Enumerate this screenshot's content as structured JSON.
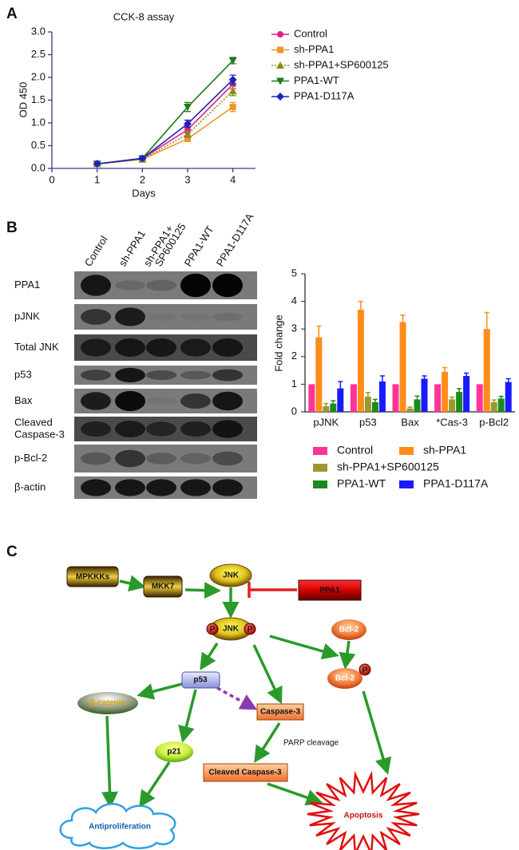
{
  "panels": {
    "a": "A",
    "b": "B",
    "c": "C"
  },
  "chart_data": [
    {
      "type": "line",
      "title": "CCK-8 assay",
      "x_label": "Days",
      "y_label": "OD 450",
      "x": [
        1,
        2,
        3,
        4
      ],
      "xlim": [
        0,
        4.5
      ],
      "xticks": [
        0,
        1,
        2,
        3,
        4
      ],
      "ylim": [
        0,
        3
      ],
      "yticks": [
        {
          "value": 0,
          "label": "0.0"
        },
        0.5,
        {
          "value": 1,
          "label": "1.0"
        },
        1.5,
        {
          "value": 2,
          "label": "2.0"
        },
        2.5,
        {
          "value": 3,
          "label": "3.0"
        }
      ],
      "series": [
        {
          "name": "Control",
          "color": "#e0218a",
          "values": [
            0.1,
            0.22,
            0.85,
            1.85
          ],
          "errors": [
            0.02,
            0.02,
            0.07,
            0.1
          ]
        },
        {
          "name": "sh-PPA1",
          "color": "#f0952a",
          "values": [
            0.1,
            0.2,
            0.65,
            1.35
          ],
          "errors": [
            0.02,
            0.02,
            0.06,
            0.1
          ]
        },
        {
          "name": "sh-PPA1+SP600125",
          "color": "#8b8b1a",
          "line_style": "dotted",
          "values": [
            0.1,
            0.2,
            0.75,
            1.7
          ],
          "errors": [
            0.02,
            0.02,
            0.07,
            0.1
          ]
        },
        {
          "name": "PPA1-WT",
          "color": "#1e7a1e",
          "values": [
            0.1,
            0.22,
            1.35,
            2.37
          ],
          "errors": [
            0.02,
            0.02,
            0.1,
            0.07
          ]
        },
        {
          "name": "PPA1-D117A",
          "color": "#2020c0",
          "values": [
            0.1,
            0.22,
            0.98,
            1.95
          ],
          "errors": [
            0.02,
            0.02,
            0.08,
            0.1
          ]
        }
      ]
    },
    {
      "type": "bar",
      "y_label": "Fold change",
      "categories": [
        "pJNK",
        "p53",
        "Bax",
        "*Cas-3",
        "p-Bcl2"
      ],
      "ylim": [
        0,
        5
      ],
      "yticks": [
        0,
        1,
        2,
        3,
        4,
        5
      ],
      "series": [
        {
          "name": "Control",
          "color": "#ff3399",
          "values": [
            1,
            1,
            1,
            1,
            1
          ]
        },
        {
          "name": "sh-PPA1",
          "color": "#ff8c1a",
          "values": [
            2.7,
            3.7,
            3.25,
            1.45,
            3.0
          ],
          "errors": [
            0.4,
            0.3,
            0.25,
            0.15,
            0.6
          ]
        },
        {
          "name": "sh-PPA1+SP600125",
          "color": "#999933",
          "values": [
            0.2,
            0.55,
            0.12,
            0.45,
            0.35
          ],
          "errors": [
            0.1,
            0.15,
            0.05,
            0.08,
            0.08
          ]
        },
        {
          "name": "PPA1-WT",
          "color": "#1a8c1a",
          "values": [
            0.3,
            0.35,
            0.45,
            0.72,
            0.48
          ],
          "errors": [
            0.1,
            0.1,
            0.12,
            0.12,
            0.08
          ]
        },
        {
          "name": "PPA1-D117A",
          "color": "#1a1aff",
          "values": [
            0.85,
            1.1,
            1.2,
            1.3,
            1.08
          ],
          "errors": [
            0.25,
            0.2,
            0.1,
            0.1,
            0.12
          ]
        }
      ]
    }
  ],
  "blot": {
    "lanes": [
      "Control",
      "sh-PPA1",
      [
        "sh-PPA1+",
        "SP600125"
      ],
      "PPA1-WT",
      "PPA1-D117A"
    ],
    "rows": [
      "PPA1",
      "pJNK",
      "Total JNK",
      "p53",
      "Bax",
      [
        "Cleaved",
        "Caspase-3"
      ],
      "p-Bcl-2",
      "β-actin"
    ]
  },
  "diagram": {
    "nodes": [
      "JNK",
      "MPKKKs",
      "MKK7",
      "PPA1",
      "JNK",
      "Bcl-2",
      "Bcl-2",
      "p53",
      "β-catenin",
      "Caspase-3",
      "p21",
      "Cleaved Caspase-3",
      "Antiproliferation",
      "Apoptosis"
    ],
    "phospho": [
      "P",
      "P",
      "P"
    ],
    "edge_label": "PARP cleavage"
  }
}
